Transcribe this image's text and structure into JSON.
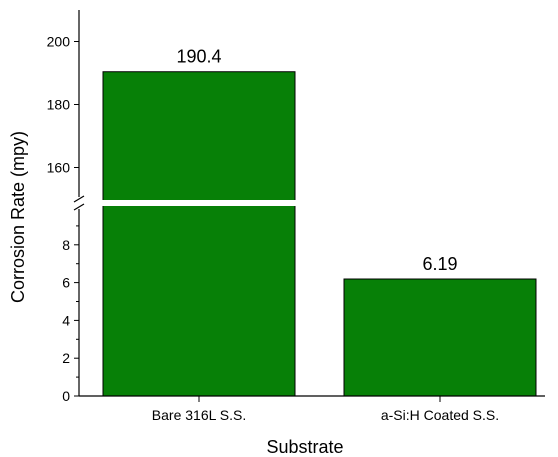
{
  "chart_data": {
    "type": "bar",
    "categories": [
      "Bare 316L S.S.",
      "a-Si:H Coated S.S."
    ],
    "values": [
      190.4,
      6.19
    ],
    "value_labels": [
      "190.4",
      "6.19"
    ],
    "xlabel": "Substrate",
    "ylabel": "Corrosion Rate (mpy)",
    "broken_y_axis": true,
    "y_segments": [
      {
        "range": [
          0,
          10
        ],
        "ticks": [
          0,
          2,
          4,
          6,
          8
        ],
        "tick_labels": [
          "0",
          "2",
          "4",
          "6",
          "8"
        ]
      },
      {
        "range": [
          150,
          210
        ],
        "ticks": [
          160,
          180,
          200
        ],
        "tick_labels": [
          "160",
          "180",
          "200"
        ]
      }
    ],
    "grid": false,
    "bar_color": "#078007"
  }
}
